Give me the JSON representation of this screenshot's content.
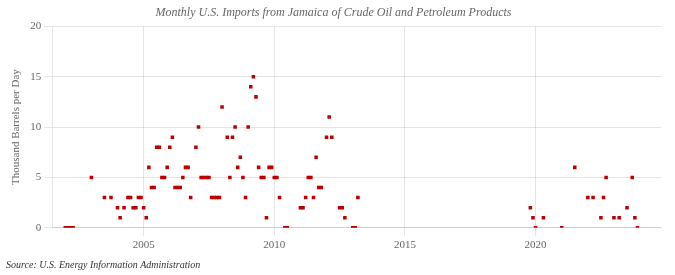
{
  "chart_data": {
    "type": "scatter",
    "title": "Monthly U.S. Imports from Jamaica of Crude Oil and Petroleum Products",
    "ylabel": "Thousand Barrels per Day",
    "annotations": [
      "Source: U.S. Energy Information Administration"
    ],
    "color": "#BB0000",
    "marker": "square",
    "grid": true,
    "xlim": [
      2001.5,
      2024.8
    ],
    "xticks": [
      2005,
      2010,
      2015,
      2020
    ],
    "ylim": [
      0,
      20
    ],
    "yticks": [
      0,
      5,
      10,
      15,
      20
    ],
    "x": [
      2002.0,
      2002.1,
      2002.2,
      2002.3,
      2003.0,
      2003.5,
      2003.75,
      2004.0,
      2004.1,
      2004.25,
      2004.4,
      2004.5,
      2004.6,
      2004.7,
      2004.8,
      2004.9,
      2005.0,
      2005.1,
      2005.2,
      2005.3,
      2005.4,
      2005.5,
      2005.6,
      2005.7,
      2005.8,
      2005.9,
      2006.0,
      2006.1,
      2006.2,
      2006.3,
      2006.4,
      2006.5,
      2006.6,
      2006.7,
      2006.8,
      2007.0,
      2007.1,
      2007.2,
      2007.3,
      2007.4,
      2007.5,
      2007.6,
      2007.7,
      2007.8,
      2007.9,
      2008.0,
      2008.2,
      2008.3,
      2008.4,
      2008.5,
      2008.6,
      2008.7,
      2008.8,
      2008.9,
      2009.0,
      2009.1,
      2009.2,
      2009.3,
      2009.4,
      2009.5,
      2009.6,
      2009.7,
      2009.8,
      2009.9,
      2010.0,
      2010.1,
      2010.2,
      2010.4,
      2010.5,
      2011.0,
      2011.1,
      2011.2,
      2011.3,
      2011.4,
      2011.5,
      2011.6,
      2011.7,
      2011.8,
      2012.0,
      2012.1,
      2012.2,
      2012.5,
      2012.6,
      2012.7,
      2013.0,
      2013.1,
      2013.2,
      2019.8,
      2019.9,
      2020.0,
      2020.3,
      2021.0,
      2021.5,
      2022.0,
      2022.2,
      2022.5,
      2022.6,
      2022.7,
      2023.0,
      2023.2,
      2023.5,
      2023.7,
      2023.8,
      2023.9
    ],
    "values": [
      0,
      0,
      0,
      0,
      5,
      3,
      3,
      2,
      1,
      2,
      3,
      3,
      2,
      2,
      3,
      3,
      2,
      1,
      6,
      4,
      4,
      8,
      8,
      5,
      5,
      6,
      8,
      9,
      4,
      4,
      4,
      5,
      6,
      6,
      3,
      8,
      10,
      5,
      5,
      5,
      5,
      3,
      3,
      3,
      3,
      12,
      9,
      5,
      9,
      10,
      6,
      7,
      5,
      3,
      10,
      14,
      15,
      13,
      6,
      5,
      5,
      1,
      6,
      6,
      5,
      5,
      3,
      0,
      0,
      2,
      2,
      3,
      5,
      5,
      3,
      7,
      4,
      4,
      9,
      11,
      9,
      2,
      2,
      1,
      0,
      0,
      3,
      2,
      1,
      0,
      1,
      0,
      6,
      3,
      3,
      1,
      3,
      5,
      1,
      1,
      2,
      5,
      1,
      0
    ]
  }
}
